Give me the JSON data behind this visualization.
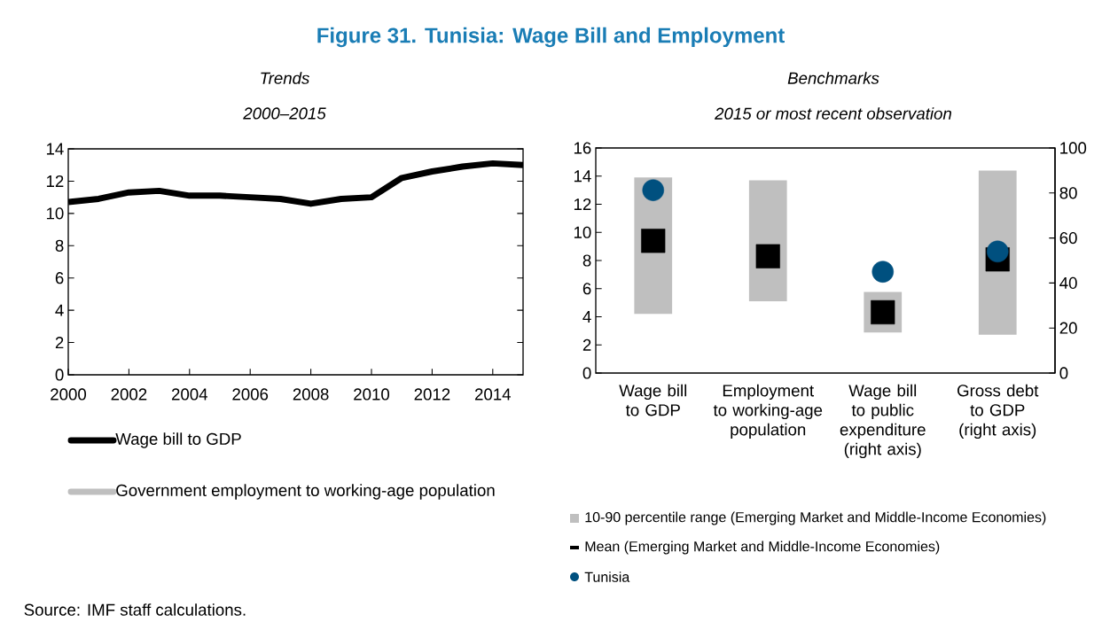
{
  "chart_data": [
    {
      "type": "line",
      "title": "Trends",
      "subtitle": "2000–2015",
      "x": [
        2000,
        2001,
        2002,
        2003,
        2004,
        2005,
        2006,
        2007,
        2008,
        2009,
        2010,
        2011,
        2012,
        2013,
        2014,
        2015
      ],
      "series": [
        {
          "name": "Wage bill to GDP",
          "color": "#000000",
          "values": [
            10.7,
            10.9,
            11.3,
            11.4,
            11.1,
            11.1,
            11.0,
            10.9,
            10.6,
            10.9,
            11.0,
            12.2,
            12.6,
            12.9,
            13.1,
            13.0
          ]
        },
        {
          "name": "Government employment to working-age population",
          "color": "#bfbfbf",
          "values": [
            null,
            null,
            null,
            null,
            null,
            null,
            null,
            null,
            null,
            null,
            null,
            null,
            null,
            null,
            null,
            null
          ]
        }
      ],
      "xlim": [
        2000,
        2015
      ],
      "xticks": [
        2000,
        2002,
        2004,
        2006,
        2008,
        2010,
        2012,
        2014
      ],
      "ylim": [
        0,
        14
      ],
      "yticks": [
        0,
        2,
        4,
        6,
        8,
        10,
        12,
        14
      ],
      "legend": "bottom",
      "marker": "none",
      "annotations": [
        "Figure 31. Tunisia: Wage Bill and Employment",
        "Source: IMF staff calculations."
      ]
    },
    {
      "type": "bar",
      "title": "Benchmarks",
      "subtitle": "2015 or most recent observation",
      "categories": [
        "Wage bill to GDP",
        "Employment to working-age population",
        "Wage bill to public expenditure (right axis)",
        "Gross debt to GDP (right axis)"
      ],
      "series": [
        {
          "name": "10-90 percentile range (Emerging Market and Middle-Income Economies)",
          "type": "bar",
          "color": "#bfbfbf",
          "base": [
            4.2,
            5.1,
            null,
            null
          ],
          "values": [
            9.7,
            8.6,
            null,
            null
          ]
        },
        {
          "type": "bar",
          "axis": "y2",
          "color": "#bfbfbf",
          "base": [
            null,
            null,
            18,
            17
          ],
          "values": [
            null,
            null,
            18,
            73
          ]
        },
        {
          "name": "Mean (Emerging Market and Middle-Income Economies)",
          "type": "scatter",
          "marker": "square",
          "color": "#000000",
          "values": [
            9.4,
            8.3,
            null,
            null
          ]
        },
        {
          "type": "scatter",
          "marker": "square",
          "axis": "y2",
          "color": "#000000",
          "values": [
            null,
            null,
            27,
            50.5
          ]
        },
        {
          "name": "Tunisia",
          "type": "scatter",
          "marker": "circle",
          "color": "#00507f",
          "values": [
            13.0,
            null,
            null,
            null
          ]
        },
        {
          "type": "scatter",
          "marker": "circle",
          "axis": "y2",
          "color": "#00507f",
          "values": [
            null,
            null,
            45,
            54
          ]
        }
      ],
      "ylim": [
        0,
        16
      ],
      "yticks": [
        0,
        2,
        4,
        6,
        8,
        10,
        12,
        14,
        16
      ],
      "y2lim": [
        0,
        100
      ],
      "y2ticks": [
        0,
        20,
        40,
        60,
        80,
        100
      ],
      "legend": "bottom"
    }
  ]
}
